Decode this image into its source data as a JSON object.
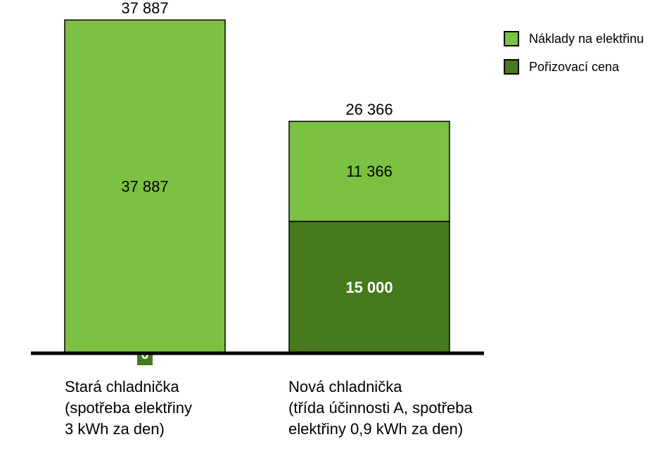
{
  "chart_data": {
    "type": "stacked-bar",
    "categories": [
      "Stará chladnička\n(spotřeba elektřiny\n3 kWh za den)",
      "Nová chladnička\n(třída účinnosti A, spotřeba\nelektřiny 0,9 kWh za den)"
    ],
    "series": [
      {
        "name": "Pořizovací cena",
        "color": "#467a1e",
        "values": [
          0,
          15000
        ],
        "labels": [
          "0",
          "15 000"
        ]
      },
      {
        "name": "Náklady na elektřinu",
        "color": "#7dc142",
        "values": [
          37887,
          11366
        ],
        "labels": [
          "37 887",
          "11 366"
        ]
      }
    ],
    "totals": [
      37887,
      26366
    ],
    "total_labels": [
      "37 887",
      "26 366"
    ],
    "legend": [
      "Náklady na elektřinu",
      "Pořizovací cena"
    ],
    "legend_position": "top-right",
    "ylim": [
      0,
      40000
    ],
    "grid": false
  }
}
